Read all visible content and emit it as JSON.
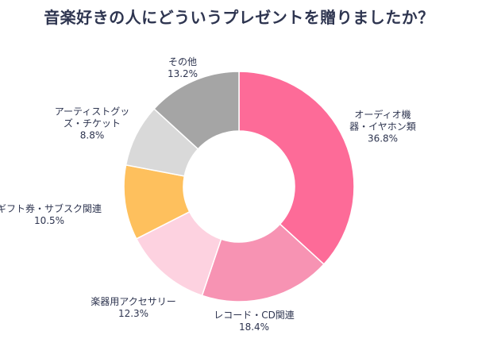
{
  "chart_data": {
    "type": "pie",
    "title": "音楽好きの人にどういうプレゼントを贈りましたか？",
    "slices": [
      {
        "lines": [
          "オーディオ機",
          "器・イヤホン類"
        ],
        "value": 36.8,
        "value_label": "36.8%",
        "color": "#fd6b98"
      },
      {
        "lines": [
          "レコード・CD関連"
        ],
        "value": 18.4,
        "value_label": "18.4%",
        "color": "#f793b3"
      },
      {
        "lines": [
          "楽器用アクセサリー"
        ],
        "value": 12.3,
        "value_label": "12.3%",
        "color": "#fdd2e0"
      },
      {
        "lines": [
          "ギフト券・サブスク関連"
        ],
        "value": 10.5,
        "value_label": "10.5%",
        "color": "#fec05d"
      },
      {
        "lines": [
          "アーティストグッ",
          "ズ・チケット"
        ],
        "value": 8.8,
        "value_label": "8.8%",
        "color": "#d9d9d9"
      },
      {
        "lines": [
          "その他"
        ],
        "value": 13.2,
        "value_label": "13.2%",
        "color": "#a5a5a5"
      }
    ]
  }
}
